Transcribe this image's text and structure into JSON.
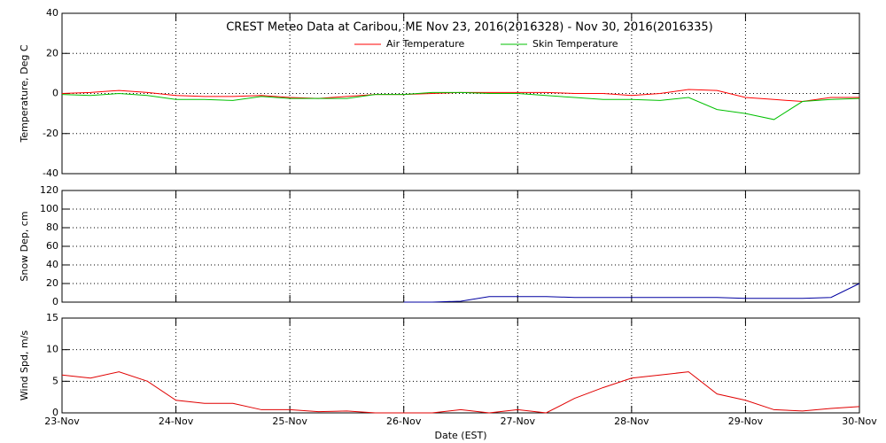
{
  "chart_data": [
    {
      "type": "line",
      "title": "CREST Meteo Data at Caribou, ME   Nov 23, 2016(2016328) - Nov 30, 2016(2016335)",
      "y_label": "Temperature, Deg C",
      "x": [
        0,
        0.25,
        0.5,
        0.75,
        1,
        1.25,
        1.5,
        1.75,
        2,
        2.25,
        2.5,
        2.75,
        3,
        3.25,
        3.5,
        3.75,
        4,
        4.25,
        4.5,
        4.75,
        5,
        5.25,
        5.5,
        5.75,
        6,
        6.25,
        6.5,
        6.75,
        7
      ],
      "xlim": [
        0,
        7
      ],
      "xticks": [
        0,
        1,
        2,
        3,
        4,
        5,
        6,
        7
      ],
      "ylim": [
        -40,
        40
      ],
      "yticks": [
        -40,
        -20,
        0,
        20,
        40
      ],
      "grid": true,
      "legend": "top",
      "series": [
        {
          "name": "Air Temperature",
          "color": "#ff0000",
          "values": [
            0,
            0.5,
            1.5,
            0.5,
            -1,
            -1.5,
            -1.5,
            -1,
            -2,
            -2.5,
            -1.5,
            -0.5,
            -0.5,
            0,
            0.5,
            0.5,
            0.5,
            0.5,
            0,
            0,
            -1,
            0,
            2,
            1.5,
            -2,
            -3,
            -4,
            -2,
            -2
          ]
        },
        {
          "name": "Skin Temperature",
          "color": "#00c000",
          "values": [
            -0.5,
            -1,
            0,
            -1,
            -3,
            -3,
            -3.5,
            -1.5,
            -2.5,
            -2.5,
            -2.5,
            -0.5,
            -0.5,
            0.5,
            0.5,
            0,
            0,
            -1,
            -2,
            -3,
            -3,
            -3.5,
            -2,
            -8,
            -10,
            -13,
            -4,
            -3,
            -2.5
          ]
        }
      ]
    },
    {
      "type": "line",
      "y_label": "Snow Dep, cm",
      "x": [
        0,
        0.25,
        0.5,
        0.75,
        1,
        1.25,
        1.5,
        1.75,
        2,
        2.25,
        2.5,
        2.75,
        3,
        3.25,
        3.5,
        3.75,
        4,
        4.25,
        4.5,
        4.75,
        5,
        5.25,
        5.5,
        5.75,
        6,
        6.25,
        6.5,
        6.75,
        7
      ],
      "xlim": [
        0,
        7
      ],
      "xticks": [
        0,
        1,
        2,
        3,
        4,
        5,
        6,
        7
      ],
      "ylim": [
        0,
        120
      ],
      "yticks": [
        0,
        20,
        40,
        60,
        80,
        100,
        120
      ],
      "grid": true,
      "series": [
        {
          "color": "#0000a0",
          "values": [
            null,
            null,
            null,
            null,
            null,
            null,
            null,
            null,
            null,
            null,
            null,
            null,
            0,
            0,
            1,
            6,
            6,
            6,
            5,
            5,
            5,
            5,
            5,
            5,
            4,
            4,
            4,
            5,
            20
          ]
        }
      ]
    },
    {
      "type": "line",
      "y_label": "Wind Spd, m/s",
      "x_label": "Date (EST)",
      "x": [
        0,
        0.25,
        0.5,
        0.75,
        1,
        1.25,
        1.5,
        1.75,
        2,
        2.25,
        2.5,
        2.75,
        3,
        3.25,
        3.5,
        3.75,
        4,
        4.25,
        4.5,
        4.75,
        5,
        5.25,
        5.5,
        5.75,
        6,
        6.25,
        6.5,
        6.75,
        7
      ],
      "xlim": [
        0,
        7
      ],
      "xticks": [
        {
          "value": 0,
          "label": "23-Nov"
        },
        {
          "value": 1,
          "label": "24-Nov"
        },
        {
          "value": 2,
          "label": "25-Nov"
        },
        {
          "value": 3,
          "label": "26-Nov"
        },
        {
          "value": 4,
          "label": "27-Nov"
        },
        {
          "value": 5,
          "label": "28-Nov"
        },
        {
          "value": 6,
          "label": "29-Nov"
        },
        {
          "value": 7,
          "label": "30-Nov"
        }
      ],
      "ylim": [
        0,
        15
      ],
      "yticks": [
        0,
        5,
        10,
        15
      ],
      "grid": true,
      "series": [
        {
          "color": "#e00000",
          "values": [
            6,
            5.5,
            6.5,
            5,
            2,
            1.5,
            1.5,
            0.5,
            0.5,
            0.2,
            0.3,
            0,
            0,
            0,
            0.5,
            0,
            0.5,
            0,
            2.3,
            4,
            5.5,
            6,
            6.5,
            3,
            2,
            0.5,
            0.3,
            0.7,
            1
          ]
        }
      ]
    }
  ]
}
